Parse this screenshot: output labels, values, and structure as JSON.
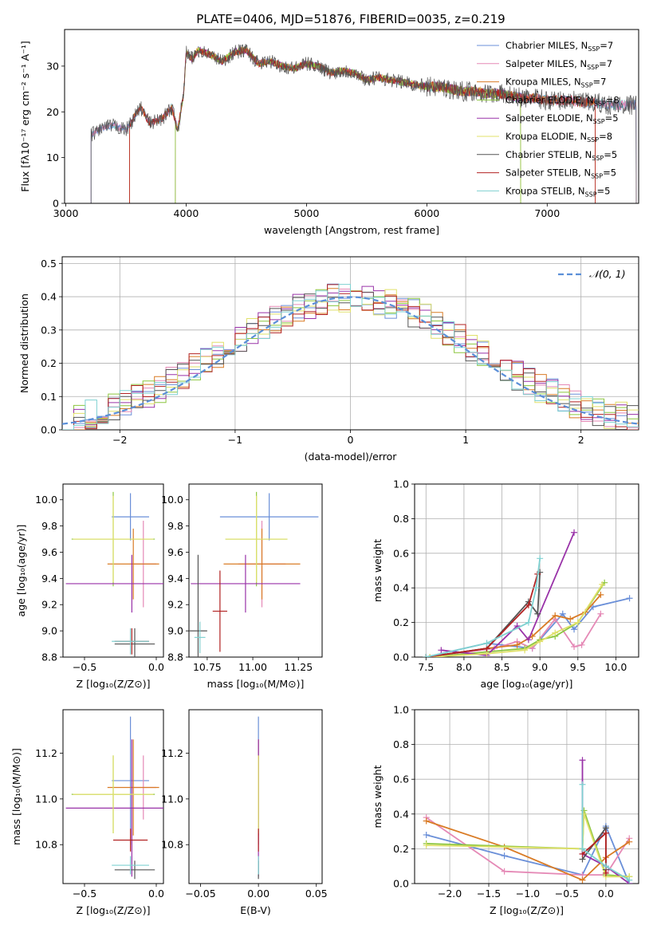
{
  "figure_title": "PLATE=0406, MJD=51876, FIBERID=0035, z=0.219",
  "models": [
    {
      "name": "Chabrier MILES",
      "nssp": "7",
      "color": "#6a8fd8"
    },
    {
      "name": "Salpeter MILES",
      "nssp": "7",
      "color": "#e589b6"
    },
    {
      "name": "Kroupa MILES",
      "nssp": "7",
      "color": "#d97b25"
    },
    {
      "name": "Chabrier ELODIE",
      "nssp": "8",
      "color": "#8cc63f"
    },
    {
      "name": "Salpeter ELODIE",
      "nssp": "5",
      "color": "#9932a8"
    },
    {
      "name": "Kroupa ELODIE",
      "nssp": "8",
      "color": "#e0e06a"
    },
    {
      "name": "Chabrier STELIB",
      "nssp": "5",
      "color": "#555555"
    },
    {
      "name": "Salpeter STELIB",
      "nssp": "5",
      "color": "#b22222"
    },
    {
      "name": "Kroupa STELIB",
      "nssp": "5",
      "color": "#7fd1d1"
    }
  ],
  "chart_data": [
    {
      "id": "spectrum",
      "type": "line",
      "xlabel": "wavelength [Angstrom, rest frame]",
      "ylabel": "Flux [fλ10⁻¹⁷ erg cm⁻² s⁻¹ A⁻¹]",
      "xlim": [
        2990,
        7760
      ],
      "ylim": [
        0,
        38
      ],
      "xticks": [
        3000,
        4000,
        5000,
        6000,
        7000
      ],
      "yticks": [
        0,
        10,
        20,
        30
      ],
      "legend_position": "top-right",
      "spectrum_points": [
        [
          3210,
          15.0
        ],
        [
          3300,
          16.5
        ],
        [
          3400,
          17.0
        ],
        [
          3500,
          16.0
        ],
        [
          3550,
          18.0
        ],
        [
          3620,
          21.0
        ],
        [
          3700,
          17.5
        ],
        [
          3800,
          18.5
        ],
        [
          3880,
          21.0
        ],
        [
          3930,
          16.0
        ],
        [
          3980,
          24.0
        ],
        [
          4000,
          33.0
        ],
        [
          4050,
          31.5
        ],
        [
          4100,
          33.5
        ],
        [
          4200,
          32.5
        ],
        [
          4300,
          31.0
        ],
        [
          4400,
          33.0
        ],
        [
          4500,
          33.5
        ],
        [
          4600,
          30.5
        ],
        [
          4700,
          31.0
        ],
        [
          4800,
          30.0
        ],
        [
          4900,
          29.5
        ],
        [
          5000,
          30.5
        ],
        [
          5100,
          30.0
        ],
        [
          5200,
          28.5
        ],
        [
          5300,
          29.0
        ],
        [
          5400,
          28.5
        ],
        [
          5500,
          27.0
        ],
        [
          5600,
          27.5
        ],
        [
          5700,
          27.0
        ],
        [
          5800,
          26.5
        ],
        [
          5900,
          26.0
        ],
        [
          6000,
          25.5
        ],
        [
          6100,
          25.5
        ],
        [
          6200,
          25.0
        ],
        [
          6300,
          24.5
        ],
        [
          6400,
          24.5
        ],
        [
          6500,
          24.0
        ],
        [
          6600,
          24.0
        ],
        [
          6700,
          23.5
        ],
        [
          6800,
          23.0
        ],
        [
          6900,
          23.0
        ],
        [
          7000,
          22.5
        ],
        [
          7100,
          22.5
        ],
        [
          7200,
          22.5
        ],
        [
          7300,
          22.0
        ],
        [
          7400,
          22.0
        ],
        [
          7500,
          21.5
        ]
      ],
      "model_starts": [
        3210,
        3210,
        3530,
        3910,
        3910,
        3910,
        3210,
        3530,
        3210
      ],
      "model_ends": [
        7740,
        7740,
        7400,
        6780,
        6780,
        6780,
        7740,
        7400,
        7740
      ]
    },
    {
      "id": "residuals",
      "type": "histogram",
      "xlabel": "(data-model)/error",
      "ylabel": "Normed distribution",
      "xlim": [
        -2.5,
        2.5
      ],
      "ylim": [
        0,
        0.52
      ],
      "xticks": [
        -2,
        -1,
        0,
        1,
        2
      ],
      "yticks": [
        0.0,
        0.1,
        0.2,
        0.3,
        0.4,
        0.5
      ],
      "grid": true,
      "legend_position": "top-right",
      "reference_curve": "𝒩(0, 1)",
      "bin_width": 0.1
    },
    {
      "id": "age_vs_Z",
      "type": "errorbar",
      "xlabel": "Z [log₁₀(Z/Z⊙)]",
      "ylabel": "age  [log₁₀(age/yr)]",
      "xlim": [
        -0.65,
        0.05
      ],
      "ylim": [
        8.8,
        10.12
      ],
      "xticks": [
        -0.5,
        0.0
      ],
      "yticks": [
        8.8,
        9.0,
        9.2,
        9.4,
        9.6,
        9.8,
        10.0
      ],
      "points": [
        {
          "x": -0.18,
          "xerr": 0.13,
          "y": 9.87,
          "yerr": 0.18
        },
        {
          "x": -0.09,
          "xerr": 0.09,
          "y": 9.51,
          "yerr": 0.33
        },
        {
          "x": -0.16,
          "xerr": 0.18,
          "y": 9.51,
          "yerr": 0.27
        },
        {
          "x": -0.3,
          "xerr": 0.29,
          "y": 9.7,
          "yerr": 0.36
        },
        {
          "x": -0.17,
          "xerr": 0.46,
          "y": 9.36,
          "yerr": 0.22
        },
        {
          "x": -0.3,
          "xerr": 0.28,
          "y": 9.7,
          "yerr": 0.33
        },
        {
          "x": -0.15,
          "xerr": 0.14,
          "y": 8.9,
          "yerr": 0.12
        },
        {
          "x": -0.17,
          "xerr": 0.12,
          "y": 8.92,
          "yerr": 0.1
        },
        {
          "x": -0.18,
          "xerr": 0.13,
          "y": 8.92,
          "yerr": 0.1
        }
      ]
    },
    {
      "id": "age_vs_mass",
      "type": "errorbar",
      "xlabel": "mass [log₁₀(M/M⊙)]",
      "ylabel": "",
      "xlim": [
        10.65,
        11.38
      ],
      "ylim": [
        8.8,
        10.12
      ],
      "xticks": [
        10.75,
        11.0,
        11.25
      ],
      "yticks": [
        8.8,
        9.0,
        9.2,
        9.4,
        9.6,
        9.8,
        10.0
      ],
      "points": [
        {
          "x": 11.09,
          "xerr": 0.27,
          "y": 9.87,
          "yerr": 0.18
        },
        {
          "x": 11.05,
          "xerr": 0.13,
          "y": 9.51,
          "yerr": 0.33
        },
        {
          "x": 11.05,
          "xerr": 0.21,
          "y": 9.51,
          "yerr": 0.27
        },
        {
          "x": 11.02,
          "xerr": 0.17,
          "y": 9.7,
          "yerr": 0.36
        },
        {
          "x": 10.96,
          "xerr": 0.3,
          "y": 9.36,
          "yerr": 0.22
        },
        {
          "x": 11.02,
          "xerr": 0.17,
          "y": 9.7,
          "yerr": 0.33
        },
        {
          "x": 10.7,
          "xerr": 0.05,
          "y": 9.0,
          "yerr": 0.58
        },
        {
          "x": 10.82,
          "xerr": 0.04,
          "y": 9.15,
          "yerr": 0.31
        },
        {
          "x": 10.71,
          "xerr": 0.03,
          "y": 8.95,
          "yerr": 0.12
        }
      ]
    },
    {
      "id": "massweight_vs_age",
      "type": "line",
      "xlabel": "age  [log₁₀(age/yr)]",
      "ylabel": "mass weight",
      "xlim": [
        7.35,
        10.3
      ],
      "ylim": [
        0,
        1.0
      ],
      "xticks": [
        7.5,
        8.0,
        8.5,
        9.0,
        9.5,
        10.0
      ],
      "yticks": [
        0.0,
        0.2,
        0.4,
        0.6,
        0.8,
        1.0
      ],
      "grid": true,
      "series": [
        {
          "x": [
            7.5,
            8.3,
            8.9,
            9.3,
            9.45,
            9.7,
            10.18
          ],
          "y": [
            0.0,
            0.08,
            0.05,
            0.25,
            0.16,
            0.29,
            0.34
          ]
        },
        {
          "x": [
            7.7,
            8.4,
            8.7,
            8.9,
            9.2,
            9.45,
            9.55,
            9.8
          ],
          "y": [
            0.01,
            0.05,
            0.09,
            0.05,
            0.22,
            0.06,
            0.07,
            0.25
          ]
        },
        {
          "x": [
            7.5,
            8.3,
            8.7,
            8.9,
            9.2,
            9.4,
            9.6,
            9.8
          ],
          "y": [
            0.0,
            0.05,
            0.07,
            0.12,
            0.24,
            0.22,
            0.26,
            0.36
          ]
        },
        {
          "x": [
            7.55,
            8.3,
            8.8,
            9.0,
            9.2,
            9.5,
            9.85
          ],
          "y": [
            0.0,
            0.03,
            0.05,
            0.1,
            0.12,
            0.2,
            0.43
          ]
        },
        {
          "x": [
            7.7,
            8.3,
            8.7,
            8.85,
            9.45
          ],
          "y": [
            0.04,
            0.01,
            0.18,
            0.1,
            0.72
          ]
        },
        {
          "x": [
            7.55,
            8.3,
            8.8,
            9.0,
            9.2,
            9.5,
            9.82
          ],
          "y": [
            0.0,
            0.02,
            0.04,
            0.09,
            0.14,
            0.2,
            0.42
          ]
        },
        {
          "x": [
            7.5,
            8.3,
            8.85,
            8.97,
            9.0
          ],
          "y": [
            0.0,
            0.05,
            0.32,
            0.25,
            0.49
          ]
        },
        {
          "x": [
            7.5,
            8.3,
            8.85,
            8.97
          ],
          "y": [
            0.0,
            0.05,
            0.3,
            0.48
          ]
        },
        {
          "x": [
            7.5,
            8.3,
            8.85,
            8.95,
            9.0
          ],
          "y": [
            0.0,
            0.08,
            0.2,
            0.4,
            0.57
          ]
        }
      ]
    },
    {
      "id": "mass_vs_Z",
      "type": "errorbar",
      "xlabel": "Z [log₁₀(Z/Z⊙)]",
      "ylabel": "mass [log₁₀(M/M⊙)]",
      "xlim": [
        -0.65,
        0.05
      ],
      "ylim": [
        10.63,
        11.39
      ],
      "xticks": [
        -0.5,
        0.0
      ],
      "yticks": [
        10.8,
        11.0,
        11.2
      ],
      "points": [
        {
          "x": -0.18,
          "xerr": 0.13,
          "y": 11.08,
          "yerr": 0.28
        },
        {
          "x": -0.09,
          "xerr": 0.09,
          "y": 11.05,
          "yerr": 0.14
        },
        {
          "x": -0.16,
          "xerr": 0.18,
          "y": 11.05,
          "yerr": 0.21
        },
        {
          "x": -0.3,
          "xerr": 0.29,
          "y": 11.02,
          "yerr": 0.17
        },
        {
          "x": -0.17,
          "xerr": 0.46,
          "y": 10.96,
          "yerr": 0.3
        },
        {
          "x": -0.3,
          "xerr": 0.28,
          "y": 11.02,
          "yerr": 0.17
        },
        {
          "x": -0.15,
          "xerr": 0.14,
          "y": 10.69,
          "yerr": 0.04
        },
        {
          "x": -0.18,
          "xerr": 0.12,
          "y": 10.82,
          "yerr": 0.05
        },
        {
          "x": -0.18,
          "xerr": 0.13,
          "y": 10.71,
          "yerr": 0.04
        }
      ]
    },
    {
      "id": "mass_vs_ebv",
      "type": "errorbar",
      "xlabel": "E(B-V)",
      "ylabel": "",
      "xlim": [
        -0.06,
        0.055
      ],
      "ylim": [
        10.63,
        11.39
      ],
      "xticks": [
        -0.05,
        0.0,
        0.05
      ],
      "yticks": [
        10.8,
        11.0,
        11.2
      ],
      "points": [
        {
          "x": 0.0,
          "xerr": 0.0,
          "y": 11.08,
          "yerr": 0.28
        },
        {
          "x": 0.0,
          "xerr": 0.0,
          "y": 11.05,
          "yerr": 0.14
        },
        {
          "x": 0.0,
          "xerr": 0.0,
          "y": 11.05,
          "yerr": 0.21
        },
        {
          "x": 0.0,
          "xerr": 0.0,
          "y": 11.02,
          "yerr": 0.17
        },
        {
          "x": 0.0,
          "xerr": 0.0,
          "y": 10.96,
          "yerr": 0.3
        },
        {
          "x": 0.0,
          "xerr": 0.0,
          "y": 11.02,
          "yerr": 0.17
        },
        {
          "x": 0.0,
          "xerr": 0.0,
          "y": 10.69,
          "yerr": 0.04
        },
        {
          "x": 0.0,
          "xerr": 0.0,
          "y": 10.82,
          "yerr": 0.05
        },
        {
          "x": 0.0,
          "xerr": 0.0,
          "y": 10.71,
          "yerr": 0.04
        }
      ]
    },
    {
      "id": "massweight_vs_Z",
      "type": "line",
      "xlabel": "Z [log₁₀(Z/Z⊙)]",
      "ylabel": "mass weight",
      "xlim": [
        -2.45,
        0.42
      ],
      "ylim": [
        0,
        1.0
      ],
      "xticks": [
        -2.0,
        -1.5,
        -1.0,
        -0.5,
        0.0
      ],
      "yticks": [
        0.0,
        0.2,
        0.4,
        0.6,
        0.8,
        1.0
      ],
      "grid": true,
      "series": [
        {
          "x": [
            -2.3,
            -1.3,
            -0.3,
            0.0,
            0.3
          ],
          "y": [
            0.28,
            0.16,
            0.05,
            0.33,
            0.0
          ]
        },
        {
          "x": [
            -2.3,
            -1.3,
            -0.3,
            0.0,
            0.3
          ],
          "y": [
            0.38,
            0.07,
            0.05,
            0.05,
            0.26
          ]
        },
        {
          "x": [
            -2.3,
            -1.3,
            -0.3,
            0.0,
            0.3
          ],
          "y": [
            0.36,
            0.21,
            0.02,
            0.15,
            0.24
          ]
        },
        {
          "x": [
            -2.3,
            -0.3,
            -0.28,
            0.0,
            0.3
          ],
          "y": [
            0.23,
            0.2,
            0.42,
            0.05,
            0.04
          ]
        },
        {
          "x": [
            -0.3,
            -0.3,
            0.0,
            0.3
          ],
          "y": [
            0.71,
            0.17,
            0.1,
            0.0
          ]
        },
        {
          "x": [
            -2.3,
            -0.3,
            -0.28,
            0.0,
            0.3
          ],
          "y": [
            0.22,
            0.2,
            0.4,
            0.04,
            0.04
          ]
        },
        {
          "x": [
            -0.3,
            0.0,
            0.0
          ],
          "y": [
            0.14,
            0.32,
            0.08
          ]
        },
        {
          "x": [
            -0.3,
            0.0,
            0.0
          ],
          "y": [
            0.17,
            0.29,
            0.06
          ]
        },
        {
          "x": [
            -0.3,
            -0.3,
            0.0,
            0.3
          ],
          "y": [
            0.57,
            0.2,
            0.1,
            0.02
          ]
        }
      ]
    }
  ]
}
